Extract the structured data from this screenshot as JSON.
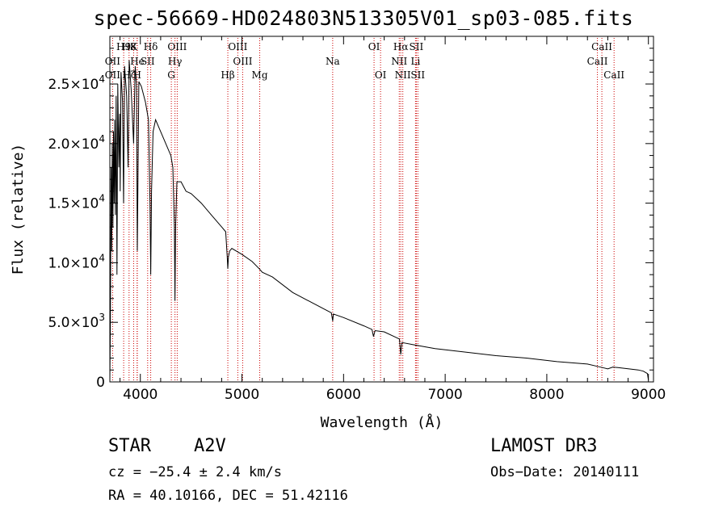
{
  "chart_data": {
    "type": "line",
    "title": "spec-56669-HD024803N513305V01_sp03-085.fits",
    "xlabel": "Wavelength (Å)",
    "ylabel": "Flux (relative)",
    "xlim": [
      3700,
      9050
    ],
    "ylim": [
      0,
      29000
    ],
    "x_ticks": [
      4000,
      5000,
      6000,
      7000,
      8000,
      9000
    ],
    "x_tick_labels": [
      "4000",
      "5000",
      "6000",
      "7000",
      "8000",
      "9000"
    ],
    "y_ticks": [
      0,
      5000,
      10000,
      15000,
      20000,
      25000
    ],
    "y_tick_labels": [
      {
        "mant": "0",
        "exp": ""
      },
      {
        "mant": "5.0×10",
        "exp": "3"
      },
      {
        "mant": "1.0×10",
        "exp": "4"
      },
      {
        "mant": "1.5×10",
        "exp": "4"
      },
      {
        "mant": "2.0×10",
        "exp": "4"
      },
      {
        "mant": "2.5×10",
        "exp": "4"
      }
    ],
    "series": [
      {
        "name": "spectrum",
        "points": [
          [
            3700,
            200
          ],
          [
            3705,
            4500
          ],
          [
            3712,
            18000
          ],
          [
            3718,
            11000
          ],
          [
            3724,
            20000
          ],
          [
            3730,
            13000
          ],
          [
            3736,
            21000
          ],
          [
            3742,
            15000
          ],
          [
            3748,
            22000
          ],
          [
            3755,
            14000
          ],
          [
            3762,
            24000
          ],
          [
            3770,
            9000
          ],
          [
            3778,
            25000
          ],
          [
            3788,
            18000
          ],
          [
            3797,
            22500
          ],
          [
            3802,
            16000
          ],
          [
            3810,
            26000
          ],
          [
            3825,
            23500
          ],
          [
            3835,
            15000
          ],
          [
            3845,
            26500
          ],
          [
            3865,
            24000
          ],
          [
            3880,
            18000
          ],
          [
            3890,
            27000
          ],
          [
            3910,
            24500
          ],
          [
            3934,
            20000
          ],
          [
            3950,
            26500
          ],
          [
            3962,
            25000
          ],
          [
            3970,
            11000
          ],
          [
            3985,
            25200
          ],
          [
            4010,
            24800
          ],
          [
            4050,
            23500
          ],
          [
            4080,
            22000
          ],
          [
            4095,
            15000
          ],
          [
            4102,
            9000
          ],
          [
            4110,
            16000
          ],
          [
            4125,
            21000
          ],
          [
            4150,
            22000
          ],
          [
            4200,
            21000
          ],
          [
            4250,
            20000
          ],
          [
            4300,
            19000
          ],
          [
            4320,
            18000
          ],
          [
            4335,
            13000
          ],
          [
            4341,
            6800
          ],
          [
            4347,
            13000
          ],
          [
            4360,
            16800
          ],
          [
            4400,
            16800
          ],
          [
            4450,
            16000
          ],
          [
            4500,
            15800
          ],
          [
            4600,
            15000
          ],
          [
            4700,
            14000
          ],
          [
            4800,
            13000
          ],
          [
            4840,
            12600
          ],
          [
            4855,
            10500
          ],
          [
            4861,
            9500
          ],
          [
            4867,
            10500
          ],
          [
            4880,
            11000
          ],
          [
            4900,
            11200
          ],
          [
            5000,
            10700
          ],
          [
            5100,
            10100
          ],
          [
            5170,
            9500
          ],
          [
            5200,
            9200
          ],
          [
            5300,
            8800
          ],
          [
            5500,
            7500
          ],
          [
            5700,
            6600
          ],
          [
            5880,
            5800
          ],
          [
            5893,
            5100
          ],
          [
            5900,
            5700
          ],
          [
            6000,
            5400
          ],
          [
            6200,
            4700
          ],
          [
            6280,
            4400
          ],
          [
            6295,
            3800
          ],
          [
            6310,
            4300
          ],
          [
            6400,
            4200
          ],
          [
            6500,
            3800
          ],
          [
            6550,
            3600
          ],
          [
            6563,
            2300
          ],
          [
            6575,
            3300
          ],
          [
            6700,
            3100
          ],
          [
            6900,
            2800
          ],
          [
            7200,
            2500
          ],
          [
            7500,
            2200
          ],
          [
            7800,
            2000
          ],
          [
            8100,
            1700
          ],
          [
            8400,
            1500
          ],
          [
            8500,
            1300
          ],
          [
            8550,
            1200
          ],
          [
            8600,
            1100
          ],
          [
            8650,
            1250
          ],
          [
            8700,
            1200
          ],
          [
            8800,
            1100
          ],
          [
            8900,
            1000
          ],
          [
            8950,
            900
          ],
          [
            8990,
            700
          ],
          [
            9000,
            150
          ]
        ]
      }
    ],
    "line_markers": [
      {
        "label": "H9",
        "x": 3836,
        "row": 0
      },
      {
        "label": "H8",
        "x": 3889,
        "row": 0
      },
      {
        "label": "K",
        "x": 3934,
        "row": 0
      },
      {
        "label": "Hδ",
        "x": 4102,
        "row": 0
      },
      {
        "label": "OII",
        "x": 3727,
        "row": 1
      },
      {
        "label": "He",
        "x": 3970,
        "row": 1
      },
      {
        "label": "SII",
        "x": 4072,
        "row": 1
      },
      {
        "label": "OIII",
        "x": 4363,
        "row": 0
      },
      {
        "label": "Hγ",
        "x": 4341,
        "row": 1
      },
      {
        "label": "OII",
        "x": 3727,
        "row": 2
      },
      {
        "label": "Hζ",
        "x": 3889,
        "row": 2
      },
      {
        "label": "H",
        "x": 3968,
        "row": 2
      },
      {
        "label": "G",
        "x": 4305,
        "row": 2
      },
      {
        "label": "OIII",
        "x": 4959,
        "row": 0
      },
      {
        "label": "OIII",
        "x": 5007,
        "row": 1
      },
      {
        "label": "Hβ",
        "x": 4861,
        "row": 2
      },
      {
        "label": "Mg",
        "x": 5175,
        "row": 2
      },
      {
        "label": "Na",
        "x": 5893,
        "row": 1
      },
      {
        "label": "OI",
        "x": 6300,
        "row": 0
      },
      {
        "label": "OI",
        "x": 6364,
        "row": 2
      },
      {
        "label": "Hα",
        "x": 6563,
        "row": 0
      },
      {
        "label": "SII",
        "x": 6716,
        "row": 0
      },
      {
        "label": "NII",
        "x": 6548,
        "row": 1
      },
      {
        "label": "Li",
        "x": 6708,
        "row": 1
      },
      {
        "label": "NII",
        "x": 6583,
        "row": 2
      },
      {
        "label": "SII",
        "x": 6731,
        "row": 2
      },
      {
        "label": "CaII",
        "x": 8542,
        "row": 0
      },
      {
        "label": "CaII",
        "x": 8498,
        "row": 1
      },
      {
        "label": "CaII",
        "x": 8662,
        "row": 2
      }
    ],
    "marker_lines": [
      3727,
      3836,
      3889,
      3934,
      3968,
      3970,
      4072,
      4102,
      4305,
      4341,
      4363,
      4861,
      4959,
      5007,
      5175,
      5893,
      6300,
      6364,
      6548,
      6563,
      6583,
      6708,
      6716,
      6731,
      8498,
      8542,
      8662
    ]
  },
  "info": {
    "object_class": "STAR",
    "subclass": "A2V",
    "survey": "LAMOST DR3",
    "cz": "cz = −25.4 ± 2.4 km/s",
    "obs_date": "Obs−Date: 20140111",
    "coords": "RA =  40.10166, DEC =  51.42116"
  }
}
